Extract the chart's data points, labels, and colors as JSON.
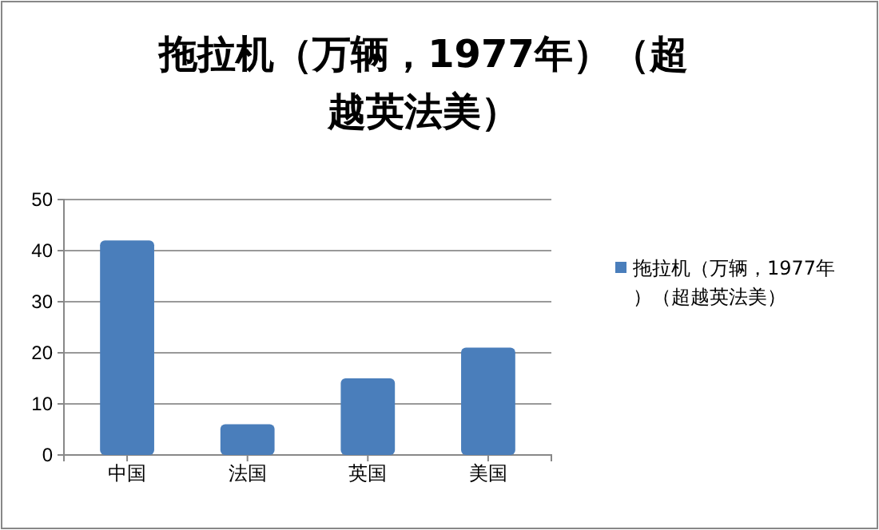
{
  "chart_data": {
    "type": "bar",
    "title": "拖拉机（万辆，1977年）（超越英法美）",
    "categories": [
      "中国",
      "法国",
      "英国",
      "美国"
    ],
    "series": [
      {
        "name": "拖拉机（万辆，1977年）（超越英法美）",
        "color": "#4a7ebb",
        "values": [
          42,
          6,
          15,
          21
        ]
      }
    ],
    "ylim": [
      0,
      50
    ],
    "yticks": [
      0,
      10,
      20,
      30,
      40,
      50
    ],
    "grid": "y",
    "legend": "right"
  }
}
